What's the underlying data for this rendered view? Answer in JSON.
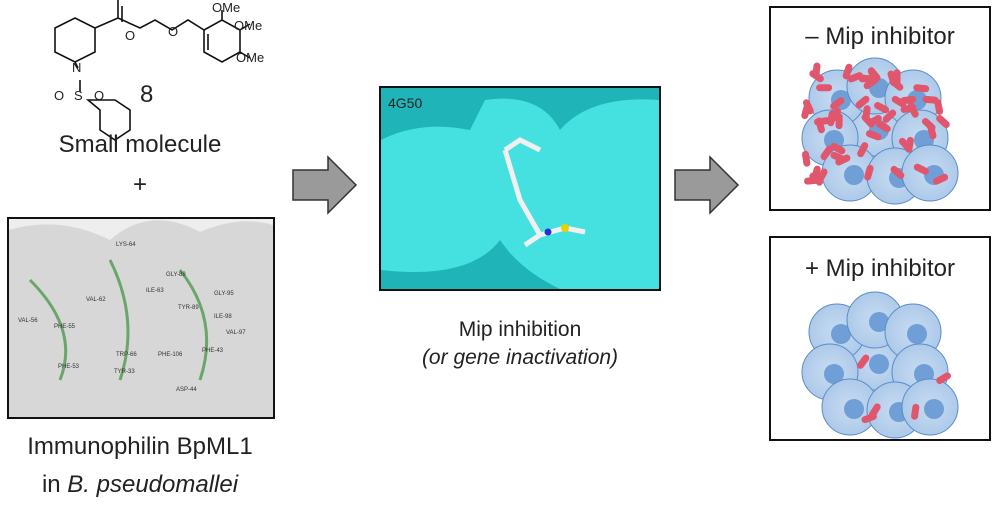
{
  "left": {
    "molecule": {
      "atoms": [
        "OMe",
        "OMe",
        "OMe",
        "O",
        "O",
        "N",
        "S",
        "O",
        "O"
      ],
      "number": "8"
    },
    "caption": "Small molecule",
    "plus": "+",
    "protein": {
      "residues": [
        "LYS-64",
        "VAL-62",
        "ILE-63",
        "GLY-88",
        "GLY-95",
        "TYR-89",
        "ILE-98",
        "VAL-97",
        "VAL-56",
        "PHE-55",
        "PHE-53",
        "TRP-66",
        "TYR-33",
        "PHE-106",
        "PHE-43",
        "ASP-44"
      ]
    },
    "protein_caption": {
      "line1": "Immunophilin BpML1",
      "prefix": "in",
      "species": "B. pseudomallei"
    }
  },
  "center": {
    "pdb": "4G50",
    "caption": "Mip inhibition",
    "subcaption": "(or gene inactivation)"
  },
  "right": {
    "panels": [
      {
        "label": "– Mip inhibitor"
      },
      {
        "label": "+ Mip inhibitor"
      }
    ]
  }
}
